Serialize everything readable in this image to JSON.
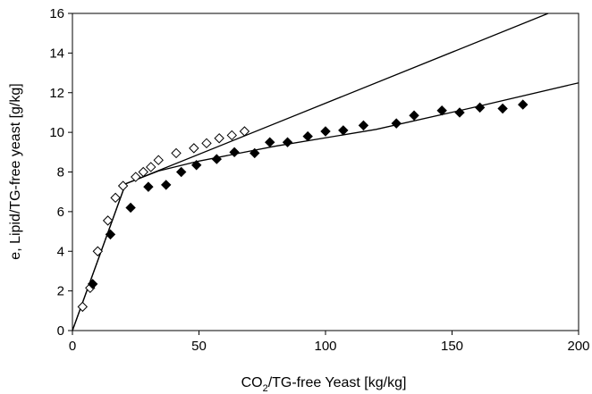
{
  "chart_data": {
    "type": "scatter",
    "title": "",
    "xlabel": "CO₂/TG-free Yeast [kg/kg]",
    "xlabel_parts": {
      "pre": "CO",
      "sub": "2",
      "post": "/TG-free Yeast [kg/kg]"
    },
    "ylabel": "e, Lipid/TG-free yeast [g/kg]",
    "xlim": [
      0,
      200
    ],
    "ylim": [
      0,
      16
    ],
    "xticks": [
      0,
      50,
      100,
      150,
      200
    ],
    "yticks": [
      0,
      2,
      4,
      6,
      8,
      10,
      12,
      14,
      16
    ],
    "grid": false,
    "legend": "none",
    "series": [
      {
        "marker": "open-diamond",
        "points": [
          [
            4,
            1.2
          ],
          [
            7,
            2.15
          ],
          [
            10,
            4.0
          ],
          [
            14,
            5.55
          ],
          [
            17,
            6.7
          ],
          [
            20,
            7.3
          ],
          [
            25,
            7.75
          ],
          [
            28,
            8.0
          ],
          [
            31,
            8.25
          ],
          [
            34,
            8.6
          ],
          [
            41,
            8.95
          ],
          [
            48,
            9.2
          ],
          [
            53,
            9.45
          ],
          [
            58,
            9.7
          ],
          [
            63,
            9.85
          ],
          [
            68,
            10.05
          ]
        ]
      },
      {
        "marker": "filled-diamond",
        "points": [
          [
            8,
            2.35
          ],
          [
            15,
            4.85
          ],
          [
            23,
            6.2
          ],
          [
            30,
            7.25
          ],
          [
            37,
            7.35
          ],
          [
            43,
            8.0
          ],
          [
            49,
            8.35
          ],
          [
            57,
            8.65
          ],
          [
            64,
            9.0
          ],
          [
            72,
            8.95
          ],
          [
            78,
            9.5
          ],
          [
            85,
            9.5
          ],
          [
            93,
            9.8
          ],
          [
            100,
            10.05
          ],
          [
            107,
            10.1
          ],
          [
            115,
            10.35
          ],
          [
            128,
            10.45
          ],
          [
            135,
            10.85
          ],
          [
            146,
            11.1
          ],
          [
            153,
            11.0
          ],
          [
            161,
            11.25
          ],
          [
            170,
            11.2
          ],
          [
            178,
            11.4
          ]
        ]
      }
    ],
    "lines": [
      {
        "points": [
          [
            0,
            0
          ],
          [
            21,
            7.4
          ],
          [
            188,
            16.0
          ]
        ]
      },
      {
        "points": [
          [
            0,
            0
          ],
          [
            21,
            7.4
          ],
          [
            34,
            8.05
          ],
          [
            50,
            8.55
          ],
          [
            80,
            9.3
          ],
          [
            120,
            10.15
          ],
          [
            160,
            11.3
          ],
          [
            200,
            12.5
          ]
        ]
      }
    ],
    "colors": {
      "axis": "#000000",
      "marker": "#000000",
      "line": "#000000"
    }
  }
}
